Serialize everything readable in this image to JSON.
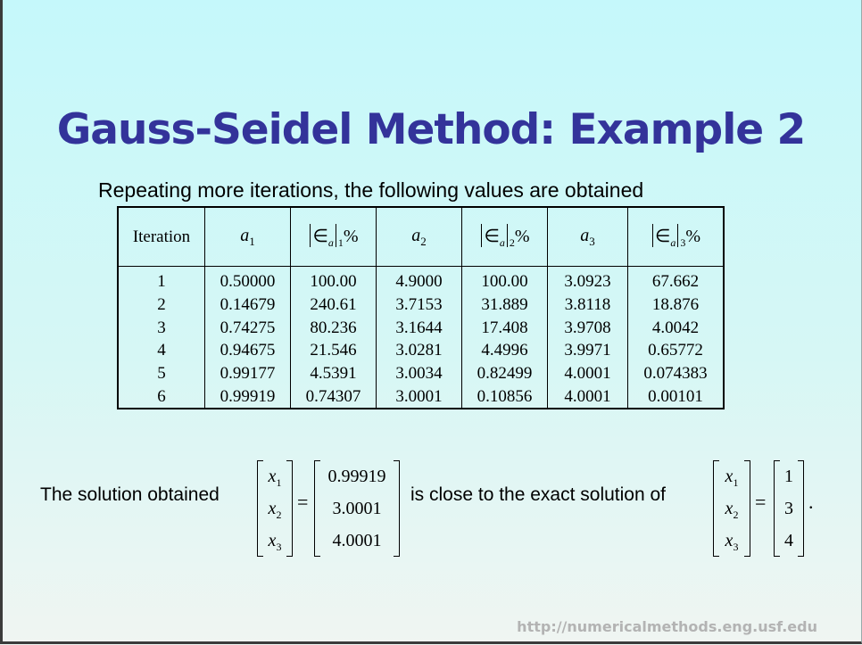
{
  "slide": {
    "title": "Gauss-Seidel Method: Example 2",
    "subtitle": "Repeating more iterations, the following values are obtained",
    "footer": "http://numericalmethods.eng.usf.edu"
  },
  "table": {
    "header_iteration": "Iteration",
    "var_symbol": "a",
    "err_symbol": "∈",
    "err_sub": "a",
    "percent": "%",
    "indices": [
      "1",
      "2",
      "3"
    ],
    "rows": [
      [
        "1",
        "0.50000",
        "100.00",
        "4.9000",
        "100.00",
        "3.0923",
        "67.662"
      ],
      [
        "2",
        "0.14679",
        "240.61",
        "3.7153",
        "31.889",
        "3.8118",
        "18.876"
      ],
      [
        "3",
        "0.74275",
        "80.236",
        "3.1644",
        "17.408",
        "3.9708",
        "4.0042"
      ],
      [
        "4",
        "0.94675",
        "21.546",
        "3.0281",
        "4.4996",
        "3.9971",
        "0.65772"
      ],
      [
        "5",
        "0.99177",
        "4.5391",
        "3.0034",
        "0.82499",
        "4.0001",
        "0.074383"
      ],
      [
        "6",
        "0.99919",
        "0.74307",
        "3.0001",
        "0.10856",
        "4.0001",
        "0.00101"
      ]
    ]
  },
  "solution": {
    "text_before": "The solution obtained",
    "text_middle": "is close to the exact solution of",
    "var_letter": "x",
    "indices": [
      "1",
      "2",
      "3"
    ],
    "equals": "=",
    "obtained": [
      "0.99919",
      "3.0001",
      "4.0001"
    ],
    "exact": [
      "1",
      "3",
      "4"
    ],
    "period": "."
  }
}
